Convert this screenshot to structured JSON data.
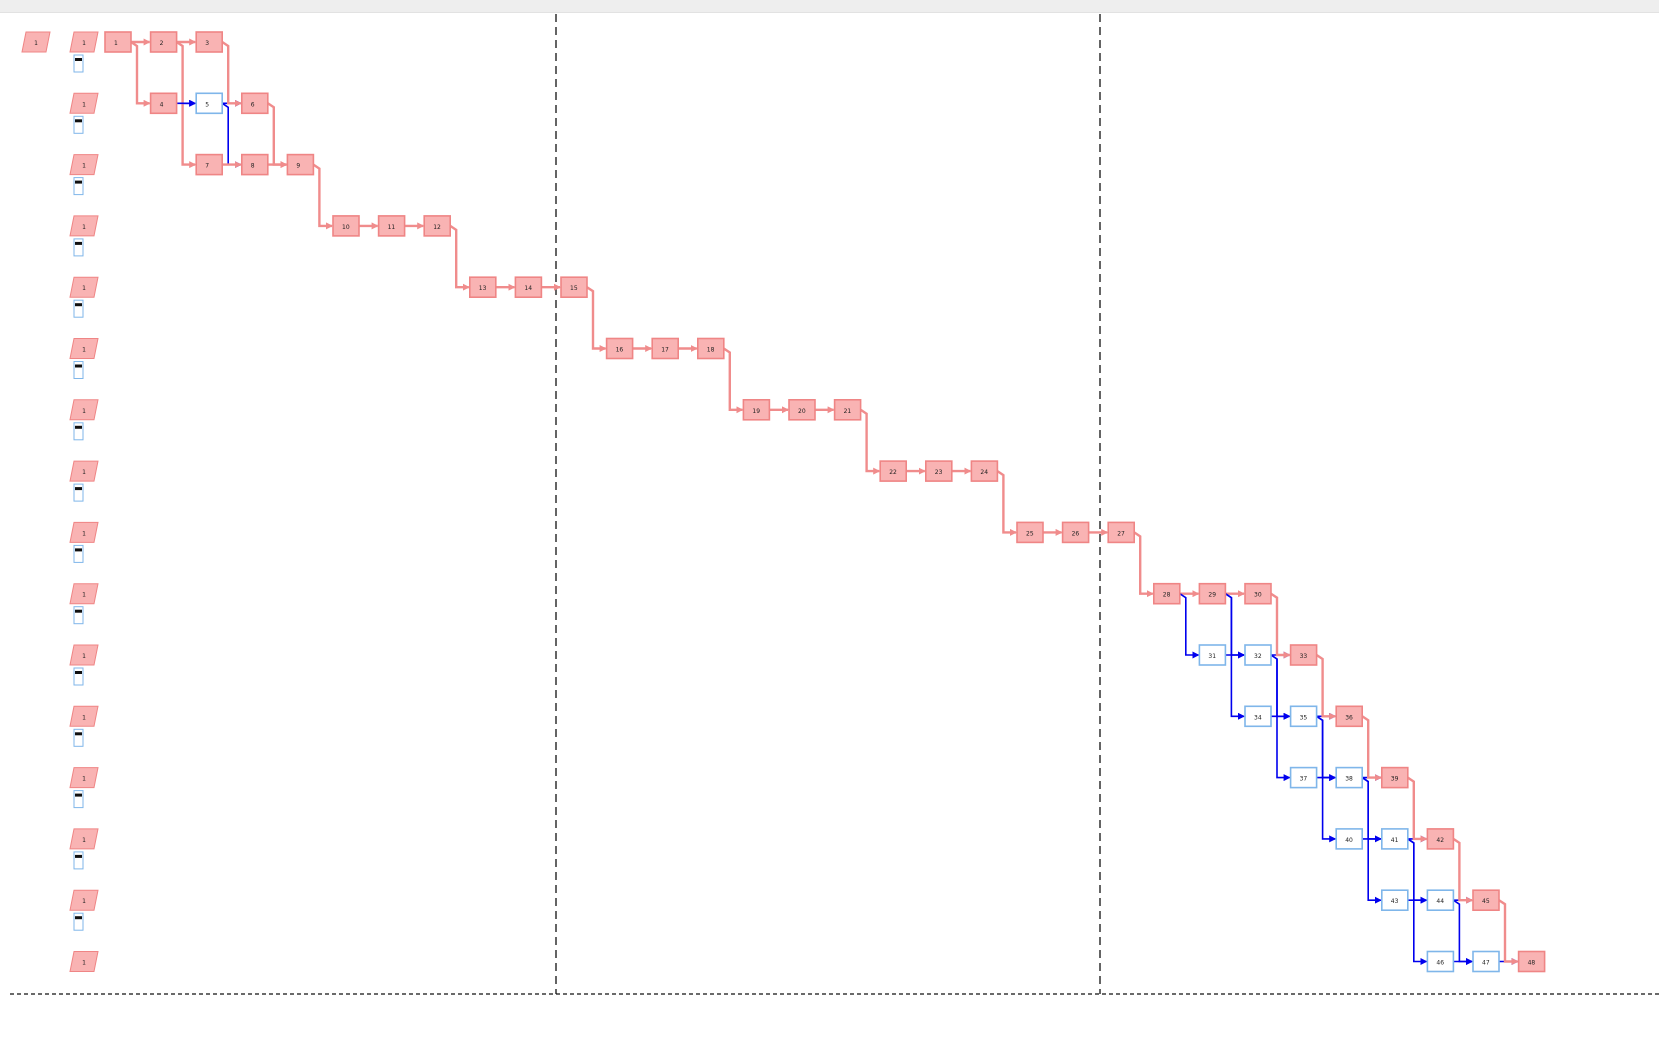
{
  "colors": {
    "critical_fill": "#f9b3b3",
    "critical_stroke": "#ef8585",
    "critical_link": "#f08c8c",
    "normal_fill": "#ffffff",
    "normal_stroke": "#7fb6ea",
    "normal_link": "#0000ee",
    "divider": "#111111",
    "label_text": "#222222"
  },
  "lanes": [
    {
      "label": "1",
      "rows": 1
    },
    {
      "label": "1",
      "rows": 1
    },
    {
      "label": "1",
      "rows": 1
    },
    {
      "label": "1",
      "rows": 1
    },
    {
      "label": "1",
      "rows": 1
    },
    {
      "label": "1",
      "rows": 1
    },
    {
      "label": "1",
      "rows": 1
    },
    {
      "label": "1",
      "rows": 1
    },
    {
      "label": "1",
      "rows": 1
    },
    {
      "label": "1",
      "rows": 1
    },
    {
      "label": "1",
      "rows": 1
    },
    {
      "label": "1",
      "rows": 1
    },
    {
      "label": "1",
      "rows": 1
    },
    {
      "label": "1",
      "rows": 1
    },
    {
      "label": "1",
      "rows": 1
    },
    {
      "label": "1",
      "rows": 1
    }
  ],
  "head_label": "1",
  "nodes": [
    {
      "id": "n1",
      "label": "1",
      "col": 0,
      "row": 0,
      "critical": true
    },
    {
      "id": "n2",
      "label": "2",
      "col": 1,
      "row": 0,
      "critical": true
    },
    {
      "id": "n3",
      "label": "3",
      "col": 2,
      "row": 0,
      "critical": true
    },
    {
      "id": "n4",
      "label": "4",
      "col": 1,
      "row": 1,
      "critical": true
    },
    {
      "id": "n5",
      "label": "5",
      "col": 2,
      "row": 1,
      "critical": false
    },
    {
      "id": "n6",
      "label": "6",
      "col": 3,
      "row": 1,
      "critical": true
    },
    {
      "id": "n7",
      "label": "7",
      "col": 2,
      "row": 2,
      "critical": true
    },
    {
      "id": "n8",
      "label": "8",
      "col": 3,
      "row": 2,
      "critical": true
    },
    {
      "id": "n9",
      "label": "9",
      "col": 4,
      "row": 2,
      "critical": true
    },
    {
      "id": "n10",
      "label": "10",
      "col": 5,
      "row": 3,
      "critical": true
    },
    {
      "id": "n11",
      "label": "11",
      "col": 6,
      "row": 3,
      "critical": true
    },
    {
      "id": "n12",
      "label": "12",
      "col": 7,
      "row": 3,
      "critical": true
    },
    {
      "id": "n13",
      "label": "13",
      "col": 8,
      "row": 4,
      "critical": true
    },
    {
      "id": "n14",
      "label": "14",
      "col": 9,
      "row": 4,
      "critical": true
    },
    {
      "id": "n15",
      "label": "15",
      "col": 10,
      "row": 4,
      "critical": true
    },
    {
      "id": "n16",
      "label": "16",
      "col": 11,
      "row": 5,
      "critical": true
    },
    {
      "id": "n17",
      "label": "17",
      "col": 12,
      "row": 5,
      "critical": true
    },
    {
      "id": "n18",
      "label": "18",
      "col": 13,
      "row": 5,
      "critical": true
    },
    {
      "id": "n19",
      "label": "19",
      "col": 14,
      "row": 6,
      "critical": true
    },
    {
      "id": "n20",
      "label": "20",
      "col": 15,
      "row": 6,
      "critical": true
    },
    {
      "id": "n21",
      "label": "21",
      "col": 16,
      "row": 6,
      "critical": true
    },
    {
      "id": "n22",
      "label": "22",
      "col": 17,
      "row": 7,
      "critical": true
    },
    {
      "id": "n23",
      "label": "23",
      "col": 18,
      "row": 7,
      "critical": true
    },
    {
      "id": "n24",
      "label": "24",
      "col": 19,
      "row": 7,
      "critical": true
    },
    {
      "id": "n25",
      "label": "25",
      "col": 20,
      "row": 8,
      "critical": true
    },
    {
      "id": "n26",
      "label": "26",
      "col": 21,
      "row": 8,
      "critical": true
    },
    {
      "id": "n27",
      "label": "27",
      "col": 22,
      "row": 8,
      "critical": true
    },
    {
      "id": "n28",
      "label": "28",
      "col": 23,
      "row": 9,
      "critical": true
    },
    {
      "id": "n29",
      "label": "29",
      "col": 24,
      "row": 9,
      "critical": true
    },
    {
      "id": "n30",
      "label": "30",
      "col": 25,
      "row": 9,
      "critical": true
    },
    {
      "id": "n31",
      "label": "31",
      "col": 24,
      "row": 10,
      "critical": false
    },
    {
      "id": "n32",
      "label": "32",
      "col": 25,
      "row": 10,
      "critical": false
    },
    {
      "id": "n33",
      "label": "33",
      "col": 26,
      "row": 10,
      "critical": true
    },
    {
      "id": "n34",
      "label": "34",
      "col": 25,
      "row": 11,
      "critical": false
    },
    {
      "id": "n35",
      "label": "35",
      "col": 26,
      "row": 11,
      "critical": false
    },
    {
      "id": "n36",
      "label": "36",
      "col": 27,
      "row": 11,
      "critical": true
    },
    {
      "id": "n37",
      "label": "37",
      "col": 26,
      "row": 12,
      "critical": false
    },
    {
      "id": "n38",
      "label": "38",
      "col": 27,
      "row": 12,
      "critical": false
    },
    {
      "id": "n39",
      "label": "39",
      "col": 28,
      "row": 12,
      "critical": true
    },
    {
      "id": "n40",
      "label": "40",
      "col": 27,
      "row": 13,
      "critical": false
    },
    {
      "id": "n41",
      "label": "41",
      "col": 28,
      "row": 13,
      "critical": false
    },
    {
      "id": "n42",
      "label": "42",
      "col": 29,
      "row": 13,
      "critical": true
    },
    {
      "id": "n43",
      "label": "43",
      "col": 28,
      "row": 14,
      "critical": false
    },
    {
      "id": "n44",
      "label": "44",
      "col": 29,
      "row": 14,
      "critical": false
    },
    {
      "id": "n45",
      "label": "45",
      "col": 30,
      "row": 14,
      "critical": true
    },
    {
      "id": "n46",
      "label": "46",
      "col": 29,
      "row": 15,
      "critical": false
    },
    {
      "id": "n47",
      "label": "47",
      "col": 30,
      "row": 15,
      "critical": false
    },
    {
      "id": "n48",
      "label": "48",
      "col": 31,
      "row": 15,
      "critical": true
    }
  ],
  "edges": [
    [
      "n1",
      "n2"
    ],
    [
      "n2",
      "n3"
    ],
    [
      "n1",
      "n4"
    ],
    [
      "n2",
      "n5"
    ],
    [
      "n2",
      "n7"
    ],
    [
      "n4",
      "n5"
    ],
    [
      "n5",
      "n6"
    ],
    [
      "n3",
      "n6"
    ],
    [
      "n5",
      "n8"
    ],
    [
      "n7",
      "n8"
    ],
    [
      "n6",
      "n9"
    ],
    [
      "n8",
      "n9"
    ],
    [
      "n9",
      "n10"
    ],
    [
      "n10",
      "n11"
    ],
    [
      "n11",
      "n12"
    ],
    [
      "n12",
      "n13"
    ],
    [
      "n13",
      "n14"
    ],
    [
      "n14",
      "n15"
    ],
    [
      "n15",
      "n16"
    ],
    [
      "n16",
      "n17"
    ],
    [
      "n17",
      "n18"
    ],
    [
      "n18",
      "n19"
    ],
    [
      "n19",
      "n20"
    ],
    [
      "n20",
      "n21"
    ],
    [
      "n21",
      "n22"
    ],
    [
      "n22",
      "n23"
    ],
    [
      "n23",
      "n24"
    ],
    [
      "n24",
      "n25"
    ],
    [
      "n25",
      "n26"
    ],
    [
      "n26",
      "n27"
    ],
    [
      "n27",
      "n28"
    ],
    [
      "n28",
      "n29"
    ],
    [
      "n29",
      "n30"
    ],
    [
      "n28",
      "n31"
    ],
    [
      "n29",
      "n32"
    ],
    [
      "n31",
      "n32"
    ],
    [
      "n32",
      "n33"
    ],
    [
      "n30",
      "n33"
    ],
    [
      "n29",
      "n34"
    ],
    [
      "n32",
      "n35"
    ],
    [
      "n34",
      "n35"
    ],
    [
      "n35",
      "n36"
    ],
    [
      "n33",
      "n36"
    ],
    [
      "n32",
      "n37"
    ],
    [
      "n35",
      "n38"
    ],
    [
      "n37",
      "n38"
    ],
    [
      "n38",
      "n39"
    ],
    [
      "n36",
      "n39"
    ],
    [
      "n35",
      "n40"
    ],
    [
      "n38",
      "n41"
    ],
    [
      "n40",
      "n41"
    ],
    [
      "n41",
      "n42"
    ],
    [
      "n39",
      "n42"
    ],
    [
      "n38",
      "n43"
    ],
    [
      "n41",
      "n44"
    ],
    [
      "n43",
      "n44"
    ],
    [
      "n44",
      "n45"
    ],
    [
      "n42",
      "n45"
    ],
    [
      "n41",
      "n46"
    ],
    [
      "n44",
      "n47"
    ],
    [
      "n46",
      "n47"
    ],
    [
      "n47",
      "n48"
    ],
    [
      "n45",
      "n48"
    ]
  ],
  "dividers": {
    "count": 2
  }
}
